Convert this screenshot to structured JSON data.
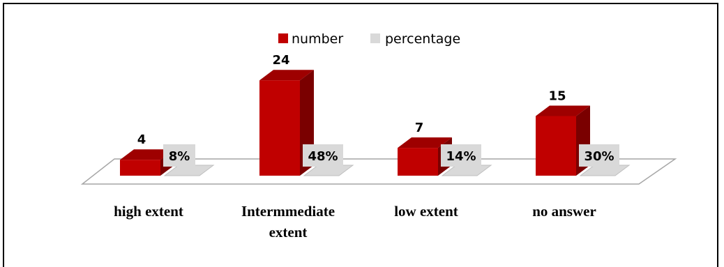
{
  "chart_data": {
    "type": "bar",
    "categories": [
      "high extent",
      "Intermmediate extent",
      "low extent",
      "no answer"
    ],
    "category_lines": [
      [
        "high extent"
      ],
      [
        "Intermmediate",
        "extent"
      ],
      [
        "low extent"
      ],
      [
        "no answer"
      ]
    ],
    "series": [
      {
        "name": "number",
        "values": [
          4,
          24,
          7,
          15
        ],
        "labels": [
          "4",
          "24",
          "7",
          "15"
        ]
      },
      {
        "name": "percentage",
        "values": [
          8,
          48,
          14,
          30
        ],
        "labels": [
          "8%",
          "48%",
          "14%",
          "30%"
        ]
      }
    ],
    "legend_position": "top-center",
    "grid": false
  },
  "colors": {
    "number_front": "#c00000",
    "number_side": "#7a0000",
    "number_top": "#9e0000",
    "percentage_fill": "#d9d9d9",
    "floor_stroke": "#a6a6a6"
  }
}
